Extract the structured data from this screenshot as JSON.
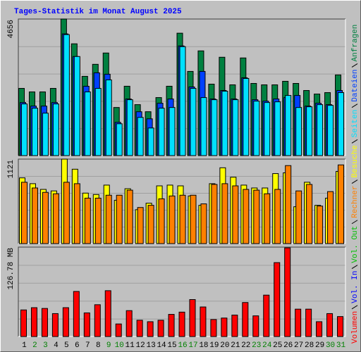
{
  "chart_data": [
    {
      "type": "bar",
      "title": "Tages-Statistik im Monat August 2025",
      "ylim": [
        0,
        4656
      ],
      "yticks": [
        4656
      ],
      "series": [
        {
          "name": "Anfragen",
          "color": "#008040",
          "values": [
            2291,
            2171,
            2171,
            2291,
            4656,
            3811,
            2702,
            3112,
            3497,
            1640,
            2365,
            1737,
            1496,
            1978,
            2365,
            4173,
            2870,
            3570,
            2436,
            3353,
            2412,
            3329,
            2460,
            2412,
            2412,
            2533,
            2460,
            2219,
            2098,
            2147,
            2750
          ]
        },
        {
          "name": "Dateien",
          "color": "#0040ff",
          "values": [
            1809,
            1688,
            1688,
            1809,
            4149,
            3377,
            2364,
            2822,
            2774,
            1134,
            1930,
            1495,
            1254,
            1785,
            1930,
            3739,
            2340,
            2870,
            1930,
            2219,
            1930,
            2653,
            1905,
            1857,
            1930,
            1978,
            2050,
            1688,
            1785,
            1737,
            2219
          ]
        },
        {
          "name": "Seiten",
          "color": "#00e0ff",
          "values": [
            1761,
            1616,
            1447,
            1761,
            4125,
            3377,
            2171,
            2291,
            2581,
            1085,
            1905,
            1302,
            941,
            1616,
            1640,
            3714,
            2291,
            1978,
            1905,
            2195,
            1905,
            2629,
            1857,
            1809,
            1833,
            2050,
            1640,
            1664,
            1737,
            1712,
            2147
          ]
        }
      ]
    },
    {
      "type": "bar",
      "ylim": [
        0,
        1121
      ],
      "yticks": [
        1121
      ],
      "series": [
        {
          "name": "Besuche",
          "color": "#ffff00",
          "values": [
            872,
            795,
            719,
            699,
            1121,
            987,
            670,
            651,
            776,
            575,
            728,
            450,
            536,
            766,
            776,
            766,
            632,
            508,
            795,
            1006,
            881,
            776,
            738,
            738,
            929,
            939,
            489,
            814,
            508,
            603,
            958
          ]
        },
        {
          "name": "Rechner",
          "color": "#ff8000",
          "values": [
            814,
            738,
            680,
            661,
            814,
            795,
            603,
            603,
            642,
            642,
            709,
            479,
            508,
            594,
            632,
            642,
            642,
            527,
            785,
            795,
            766,
            719,
            709,
            661,
            719,
            1035,
            699,
            785,
            498,
            690,
            1044
          ]
        }
      ]
    },
    {
      "type": "bar",
      "ylim": [
        0,
        126.78
      ],
      "yticks": [
        {
          "value": 126.78,
          "label": "126.78 MB"
        }
      ],
      "categories": [
        "1",
        "2",
        "3",
        "4",
        "5",
        "6",
        "7",
        "8",
        "9",
        "10",
        "11",
        "12",
        "13",
        "14",
        "15",
        "16",
        "17",
        "18",
        "19",
        "20",
        "21",
        "22",
        "23",
        "24",
        "25",
        "26",
        "27",
        "28",
        "29",
        "30",
        "31"
      ],
      "category_colors": [
        "#000000",
        "#008000",
        "#008000",
        "#000000",
        "#000000",
        "#000000",
        "#000000",
        "#000000",
        "#008000",
        "#008000",
        "#000000",
        "#000000",
        "#000000",
        "#000000",
        "#000000",
        "#008000",
        "#008000",
        "#000000",
        "#000000",
        "#000000",
        "#000000",
        "#000000",
        "#008000",
        "#008000",
        "#000000",
        "#000000",
        "#000000",
        "#000000",
        "#000000",
        "#008000",
        "#008000"
      ],
      "series": [
        {
          "name": "Vol. Out",
          "color": "#00c000"
        },
        {
          "name": "Vol. In",
          "color": "#0000ff"
        },
        {
          "name": "Volumen",
          "color": "#ff0000",
          "values": [
            37.7,
            40.9,
            39.8,
            32.5,
            40.9,
            63.9,
            33.5,
            45.1,
            65.0,
            17.8,
            36.7,
            23.1,
            21.0,
            23.1,
            31.4,
            34.6,
            52.4,
            41.9,
            24.1,
            26.2,
            30.4,
            48.2,
            29.3,
            58.7,
            104.8,
            125.7,
            38.8,
            38.8,
            21.0,
            32.5,
            28.3
          ]
        }
      ]
    }
  ]
}
